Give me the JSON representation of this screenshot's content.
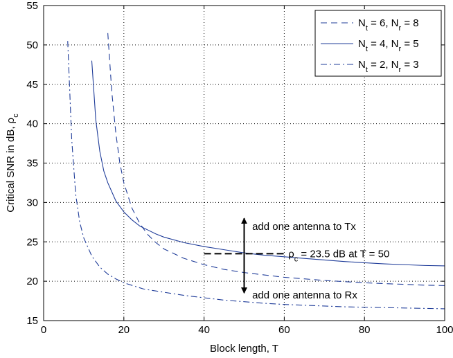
{
  "chart_data": {
    "type": "line",
    "title": "",
    "xlabel": "Block length, T",
    "ylabel": "Critical SNR in dB, ρc",
    "ylabel_parts": {
      "main": "Critical SNR in dB, ρ",
      "sub": "c"
    },
    "xlim": [
      0,
      100
    ],
    "ylim": [
      15,
      55
    ],
    "xticks": [
      "0",
      "20",
      "40",
      "60",
      "80",
      "100"
    ],
    "yticks": [
      "15",
      "20",
      "25",
      "30",
      "35",
      "40",
      "45",
      "50",
      "55"
    ],
    "grid": true,
    "legend_position": "top-right",
    "series": [
      {
        "name": "Nt = 6, Nr = 8",
        "label_parts": [
          "N",
          "t",
          " = 6, N",
          "r",
          " = 8"
        ],
        "style": "dashed",
        "color": "#1f3c99",
        "x": [
          16,
          17,
          18,
          19,
          20,
          22,
          24,
          26,
          28,
          30,
          35,
          40,
          45,
          50,
          55,
          60,
          65,
          70,
          75,
          80,
          85,
          90,
          95,
          100
        ],
        "y": [
          51.5,
          44.0,
          38.8,
          35.0,
          32.5,
          29.3,
          27.3,
          25.9,
          24.9,
          24.1,
          22.9,
          22.1,
          21.5,
          21.1,
          20.8,
          20.5,
          20.3,
          20.1,
          19.95,
          19.8,
          19.7,
          19.6,
          19.5,
          19.45
        ]
      },
      {
        "name": "Nt = 4, Nr = 5",
        "label_parts": [
          "N",
          "t",
          " = 4, N",
          "r",
          " = 5"
        ],
        "style": "solid",
        "color": "#1f3c99",
        "x": [
          12,
          13,
          14,
          15,
          16,
          18,
          20,
          22,
          24,
          26,
          28,
          30,
          35,
          40,
          45,
          50,
          55,
          60,
          65,
          70,
          75,
          80,
          85,
          90,
          95,
          100
        ],
        "y": [
          48.0,
          40.5,
          36.5,
          34.0,
          32.5,
          30.2,
          28.8,
          27.8,
          27.0,
          26.5,
          26.0,
          25.6,
          24.9,
          24.4,
          24.0,
          23.6,
          23.3,
          23.1,
          22.9,
          22.7,
          22.5,
          22.35,
          22.2,
          22.1,
          22.0,
          21.95
        ]
      },
      {
        "name": "Nt = 2, Nr = 3",
        "label_parts": [
          "N",
          "t",
          " = 2, N",
          "r",
          " = 3"
        ],
        "style": "dashdot",
        "color": "#1f3c99",
        "x": [
          6,
          7,
          8,
          9,
          10,
          12,
          14,
          16,
          18,
          20,
          25,
          30,
          35,
          40,
          45,
          50,
          55,
          60,
          65,
          70,
          75,
          80,
          85,
          90,
          95,
          100
        ],
        "y": [
          50.5,
          38.0,
          31.0,
          27.5,
          25.5,
          23.2,
          21.8,
          20.9,
          20.3,
          19.8,
          19.0,
          18.6,
          18.2,
          17.9,
          17.6,
          17.4,
          17.2,
          17.05,
          16.95,
          16.85,
          16.75,
          16.7,
          16.65,
          16.6,
          16.55,
          16.5
        ]
      }
    ],
    "annotations": {
      "reference_point": {
        "x": 50,
        "y": 23.5
      },
      "reference_dash_x": [
        40,
        60
      ],
      "tx_arrow_to": 28,
      "rx_arrow_to": 18.5,
      "tx_text": "add one antenna to Tx",
      "tx_text_anchor": {
        "x": 52,
        "y": 26.5
      },
      "rx_text": "add one antenna to Rx",
      "rx_text_anchor": {
        "x": 52,
        "y": 17.8
      },
      "rho_text_parts": [
        "ρ",
        "c",
        " = 23.5 dB at T = 50"
      ],
      "rho_text_anchor": {
        "x": 61,
        "y": 23.5
      }
    }
  }
}
